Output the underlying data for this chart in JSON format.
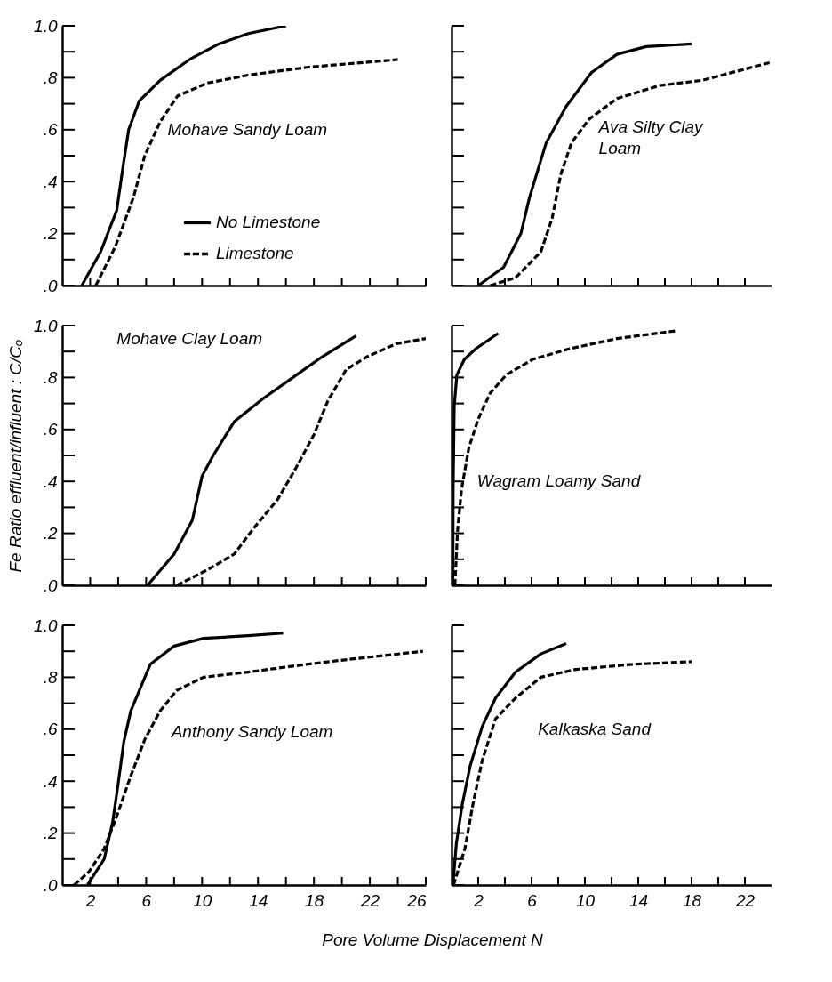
{
  "chart_data": [
    {
      "type": "line",
      "annotations": [
        "Mohave Sandy Loam"
      ],
      "legend": "center",
      "tick_labels": "y",
      "xlim": [
        0,
        26
      ],
      "ylim": [
        0,
        1.0
      ],
      "xticks": [
        {
          "value": 2,
          "label": null
        },
        {
          "value": 4,
          "label": null
        },
        {
          "value": 6,
          "label": null
        },
        {
          "value": 8,
          "label": null
        },
        {
          "value": 10,
          "label": null
        },
        {
          "value": 12,
          "label": null
        },
        {
          "value": 14,
          "label": null
        },
        {
          "value": 16,
          "label": null
        },
        {
          "value": 18,
          "label": null
        },
        {
          "value": 20,
          "label": null
        },
        {
          "value": 22,
          "label": null
        },
        {
          "value": 24,
          "label": null
        },
        {
          "value": 26,
          "label": null
        }
      ],
      "yticks": [
        {
          "value": 0,
          "label": ".0"
        },
        {
          "value": 0.1,
          "label": null
        },
        {
          "value": 0.2,
          "label": ".2"
        },
        {
          "value": 0.3,
          "label": null
        },
        {
          "value": 0.4,
          "label": ".4"
        },
        {
          "value": 0.5,
          "label": null
        },
        {
          "value": 0.6,
          "label": ".6"
        },
        {
          "value": 0.7,
          "label": null
        },
        {
          "value": 0.8,
          "label": ".8"
        },
        {
          "value": 0.9,
          "label": null
        },
        {
          "value": 1.0,
          "label": "1.0"
        }
      ],
      "series": [
        {
          "name": "No Limestone",
          "color": "#000000",
          "line_style": "solid",
          "x": [
            1.4,
            2.75,
            3.9,
            4.3,
            4.75,
            5.5,
            7,
            9.1,
            11.2,
            13.3,
            16
          ],
          "values": [
            0,
            0.13,
            0.29,
            0.44,
            0.6,
            0.71,
            0.79,
            0.87,
            0.93,
            0.97,
            1.0
          ]
        },
        {
          "name": "Limestone",
          "color": "#000000",
          "line_style": "dashed",
          "x": [
            2.4,
            3.8,
            5.1,
            5.9,
            7,
            8.25,
            10.4,
            13.3,
            17.5,
            24
          ],
          "values": [
            0,
            0.15,
            0.34,
            0.5,
            0.63,
            0.73,
            0.78,
            0.81,
            0.84,
            0.87
          ]
        }
      ]
    },
    {
      "type": "line",
      "annotations": [
        "Ava Silty Clay\nLoam"
      ],
      "tick_labels": false,
      "xlim": [
        0,
        24
      ],
      "ylim": [
        0,
        1.0
      ],
      "xticks": [
        {
          "value": 2,
          "label": null
        },
        {
          "value": 4,
          "label": null
        },
        {
          "value": 6,
          "label": null
        },
        {
          "value": 8,
          "label": null
        },
        {
          "value": 10,
          "label": null
        },
        {
          "value": 12,
          "label": null
        },
        {
          "value": 14,
          "label": null
        },
        {
          "value": 16,
          "label": null
        },
        {
          "value": 18,
          "label": null
        },
        {
          "value": 20,
          "label": null
        },
        {
          "value": 22,
          "label": null
        }
      ],
      "yticks": [
        {
          "value": 0,
          "label": null
        },
        {
          "value": 0.1,
          "label": null
        },
        {
          "value": 0.2,
          "label": null
        },
        {
          "value": 0.3,
          "label": null
        },
        {
          "value": 0.4,
          "label": null
        },
        {
          "value": 0.5,
          "label": null
        },
        {
          "value": 0.6,
          "label": null
        },
        {
          "value": 0.7,
          "label": null
        },
        {
          "value": 0.8,
          "label": null
        },
        {
          "value": 0.9,
          "label": null
        },
        {
          "value": 1.0,
          "label": null
        }
      ],
      "series": [
        {
          "color": "#000000",
          "line_style": "solid",
          "x": [
            2,
            3.9,
            5.2,
            5.85,
            7.1,
            8.6,
            10.5,
            12.4,
            14.6,
            18
          ],
          "values": [
            0,
            0.07,
            0.2,
            0.34,
            0.55,
            0.69,
            0.82,
            0.89,
            0.92,
            0.93
          ]
        },
        {
          "color": "#000000",
          "line_style": "dashed",
          "x": [
            2.9,
            4.8,
            6.7,
            7.55,
            8.2,
            9,
            10.3,
            12.4,
            15.6,
            18.8,
            24
          ],
          "values": [
            0,
            0.03,
            0.13,
            0.26,
            0.43,
            0.55,
            0.64,
            0.72,
            0.77,
            0.79,
            0.86
          ]
        }
      ]
    },
    {
      "type": "line",
      "annotations": [
        "Mohave Clay Loam"
      ],
      "ylabel": "Fe Ratio effluent/influent : C/Cₒ",
      "tick_labels": "y",
      "xlim": [
        0,
        26
      ],
      "ylim": [
        0,
        1.0
      ],
      "xticks": [
        {
          "value": 2,
          "label": null
        },
        {
          "value": 4,
          "label": null
        },
        {
          "value": 6,
          "label": null
        },
        {
          "value": 8,
          "label": null
        },
        {
          "value": 10,
          "label": null
        },
        {
          "value": 12,
          "label": null
        },
        {
          "value": 14,
          "label": null
        },
        {
          "value": 16,
          "label": null
        },
        {
          "value": 18,
          "label": null
        },
        {
          "value": 20,
          "label": null
        },
        {
          "value": 22,
          "label": null
        },
        {
          "value": 24,
          "label": null
        },
        {
          "value": 26,
          "label": null
        }
      ],
      "yticks": [
        {
          "value": 0,
          "label": ".0"
        },
        {
          "value": 0.1,
          "label": null
        },
        {
          "value": 0.2,
          "label": ".2"
        },
        {
          "value": 0.3,
          "label": null
        },
        {
          "value": 0.4,
          "label": ".4"
        },
        {
          "value": 0.5,
          "label": null
        },
        {
          "value": 0.6,
          "label": ".6"
        },
        {
          "value": 0.7,
          "label": null
        },
        {
          "value": 0.8,
          "label": ".8"
        },
        {
          "value": 0.9,
          "label": null
        },
        {
          "value": 1.0,
          "label": "1.0"
        }
      ],
      "series": [
        {
          "color": "#000000",
          "line_style": "solid",
          "x": [
            6.1,
            8,
            9.3,
            10,
            10.8,
            12.3,
            14.4,
            16.5,
            18.6,
            21
          ],
          "values": [
            0,
            0.12,
            0.25,
            0.42,
            0.5,
            0.63,
            0.72,
            0.8,
            0.88,
            0.96
          ]
        },
        {
          "color": "#000000",
          "line_style": "dashed",
          "x": [
            8.2,
            10.4,
            12.3,
            13.7,
            15.4,
            16.7,
            18,
            19,
            20.3,
            21.8,
            23.9,
            26
          ],
          "values": [
            0,
            0.06,
            0.12,
            0.22,
            0.33,
            0.45,
            0.58,
            0.71,
            0.83,
            0.88,
            0.93,
            0.95
          ]
        }
      ]
    },
    {
      "type": "line",
      "annotations": [
        "Wagram Loamy Sand"
      ],
      "tick_labels": false,
      "xlim": [
        0,
        24
      ],
      "ylim": [
        0,
        1.0
      ],
      "xticks": [
        {
          "value": 2,
          "label": null
        },
        {
          "value": 4,
          "label": null
        },
        {
          "value": 6,
          "label": null
        },
        {
          "value": 8,
          "label": null
        },
        {
          "value": 10,
          "label": null
        },
        {
          "value": 12,
          "label": null
        },
        {
          "value": 14,
          "label": null
        },
        {
          "value": 16,
          "label": null
        },
        {
          "value": 18,
          "label": null
        },
        {
          "value": 20,
          "label": null
        },
        {
          "value": 22,
          "label": null
        }
      ],
      "yticks": [
        {
          "value": 0,
          "label": null
        },
        {
          "value": 0.1,
          "label": null
        },
        {
          "value": 0.2,
          "label": null
        },
        {
          "value": 0.3,
          "label": null
        },
        {
          "value": 0.4,
          "label": null
        },
        {
          "value": 0.5,
          "label": null
        },
        {
          "value": 0.6,
          "label": null
        },
        {
          "value": 0.7,
          "label": null
        },
        {
          "value": 0.8,
          "label": null
        },
        {
          "value": 0.9,
          "label": null
        },
        {
          "value": 1.0,
          "label": null
        }
      ],
      "series": [
        {
          "color": "#000000",
          "line_style": "solid",
          "x": [
            0.1,
            0.12,
            0.2,
            0.4,
            0.96,
            1.8,
            3.5
          ],
          "values": [
            0,
            0.37,
            0.69,
            0.81,
            0.87,
            0.91,
            0.97
          ]
        },
        {
          "color": "#000000",
          "line_style": "dashed",
          "x": [
            0.25,
            0.45,
            0.75,
            1.3,
            2,
            2.9,
            4.1,
            6.1,
            8.8,
            12.4,
            16.9
          ],
          "values": [
            0,
            0.21,
            0.37,
            0.53,
            0.64,
            0.74,
            0.81,
            0.87,
            0.91,
            0.95,
            0.98
          ]
        }
      ]
    },
    {
      "type": "line",
      "annotations": [
        "Anthony Sandy Loam"
      ],
      "xlabel": "Pore Volume Displacement N",
      "xlim": [
        0,
        26
      ],
      "ylim": [
        0,
        1.0
      ],
      "xticks": [
        2,
        {
          "value": 4,
          "label": null
        },
        6,
        {
          "value": 8,
          "label": null
        },
        10,
        {
          "value": 12,
          "label": null
        },
        14,
        {
          "value": 16,
          "label": null
        },
        18,
        {
          "value": 20,
          "label": null
        },
        22,
        {
          "value": 24,
          "label": null
        },
        26
      ],
      "yticks": [
        {
          "value": 0,
          "label": ".0"
        },
        {
          "value": 0.1,
          "label": null
        },
        {
          "value": 0.2,
          "label": ".2"
        },
        {
          "value": 0.3,
          "label": null
        },
        {
          "value": 0.4,
          "label": ".4"
        },
        {
          "value": 0.5,
          "label": null
        },
        {
          "value": 0.6,
          "label": ".6"
        },
        {
          "value": 0.7,
          "label": null
        },
        {
          "value": 0.8,
          "label": ".8"
        },
        {
          "value": 0.9,
          "label": null
        },
        {
          "value": 1.0,
          "label": "1.0"
        }
      ],
      "series": [
        {
          "color": "#000000",
          "line_style": "solid",
          "x": [
            1.8,
            3,
            3.6,
            4,
            4.4,
            4.9,
            6.3,
            8,
            10.1,
            13.3,
            15.8
          ],
          "values": [
            0,
            0.1,
            0.24,
            0.39,
            0.55,
            0.67,
            0.85,
            0.92,
            0.95,
            0.96,
            0.97
          ]
        },
        {
          "color": "#000000",
          "line_style": "dashed",
          "x": [
            0.85,
            1.9,
            3,
            3.8,
            4.9,
            5.9,
            7,
            8.2,
            10.1,
            13.3,
            17.5,
            20.7,
            25.8
          ],
          "values": [
            0,
            0.05,
            0.14,
            0.25,
            0.42,
            0.56,
            0.67,
            0.75,
            0.8,
            0.82,
            0.85,
            0.87,
            0.9
          ]
        }
      ]
    },
    {
      "type": "line",
      "annotations": [
        "Kalkaska Sand"
      ],
      "tick_labels": "x",
      "xlim": [
        0,
        24
      ],
      "ylim": [
        0,
        1.0
      ],
      "xticks": [
        2,
        {
          "value": 4,
          "label": null
        },
        6,
        {
          "value": 8,
          "label": null
        },
        10,
        {
          "value": 12,
          "label": null
        },
        14,
        {
          "value": 16,
          "label": null
        },
        18,
        {
          "value": 20,
          "label": null
        },
        22
      ],
      "yticks": [
        {
          "value": 0,
          "label": null
        },
        {
          "value": 0.1,
          "label": null
        },
        {
          "value": 0.2,
          "label": null
        },
        {
          "value": 0.3,
          "label": null
        },
        {
          "value": 0.4,
          "label": null
        },
        {
          "value": 0.5,
          "label": null
        },
        {
          "value": 0.6,
          "label": null
        },
        {
          "value": 0.7,
          "label": null
        },
        {
          "value": 0.8,
          "label": null
        },
        {
          "value": 0.9,
          "label": null
        },
        {
          "value": 1.0,
          "label": null
        }
      ],
      "series": [
        {
          "color": "#000000",
          "line_style": "solid",
          "x": [
            0.1,
            0.36,
            0.8,
            1.4,
            2.3,
            3.3,
            4.8,
            6.7,
            8.6
          ],
          "values": [
            0,
            0.16,
            0.31,
            0.46,
            0.61,
            0.72,
            0.82,
            0.89,
            0.93
          ]
        },
        {
          "color": "#000000",
          "line_style": "dashed",
          "x": [
            0.15,
            1,
            1.6,
            2.3,
            3.3,
            4.8,
            6.7,
            9.3,
            13.6,
            18
          ],
          "values": [
            0,
            0.14,
            0.31,
            0.48,
            0.64,
            0.72,
            0.8,
            0.83,
            0.85,
            0.86
          ]
        }
      ]
    }
  ]
}
